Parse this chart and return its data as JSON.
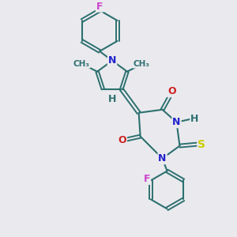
{
  "bg_color": "#eaeaee",
  "bond_color": "#2d7070",
  "atom_colors": {
    "F": "#cc44cc",
    "N": "#2222cc",
    "O": "#cc2222",
    "S": "#cccc00",
    "H": "#2d7070",
    "C": "#2d7070"
  },
  "font_size": 9,
  "title": ""
}
